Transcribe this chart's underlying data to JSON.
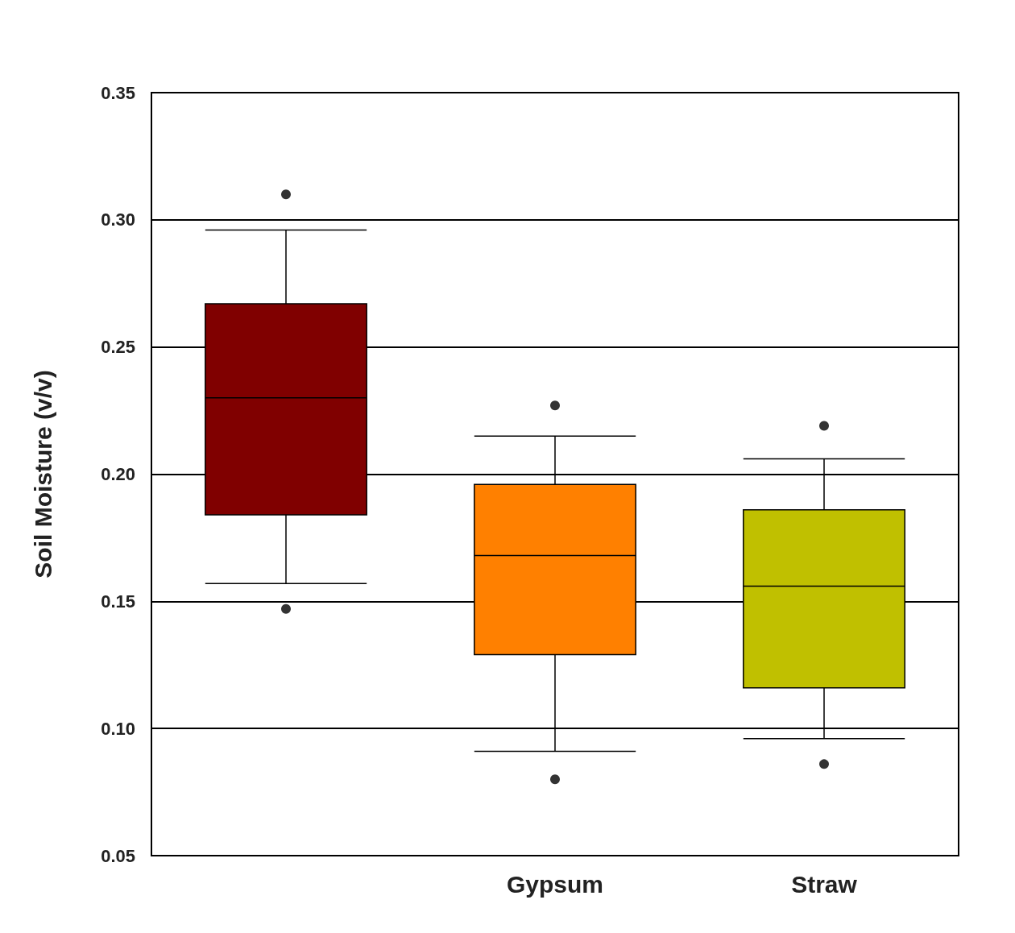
{
  "chart_data": {
    "type": "box",
    "ylabel": "Soil Moisture (v/v)",
    "categories": [
      null,
      "Gypsum",
      "Straw"
    ],
    "colors": [
      "#800000",
      "#ff8000",
      "#c0c000"
    ],
    "boxes": [
      {
        "low": 0.157,
        "q1": 0.184,
        "median": 0.23,
        "q3": 0.267,
        "high": 0.296,
        "outliers": [
          0.31,
          0.147
        ]
      },
      {
        "low": 0.091,
        "q1": 0.129,
        "median": 0.168,
        "q3": 0.196,
        "high": 0.215,
        "outliers": [
          0.227,
          0.08
        ]
      },
      {
        "low": 0.096,
        "q1": 0.116,
        "median": 0.156,
        "q3": 0.186,
        "high": 0.206,
        "outliers": [
          0.219,
          0.086
        ]
      }
    ],
    "ylim": [
      0.05,
      0.35
    ],
    "yticks": [
      0.05,
      {
        "value": 0.1,
        "label": "0.10"
      },
      0.15,
      {
        "value": 0.2,
        "label": "0.20"
      },
      0.25,
      {
        "value": 0.3,
        "label": "0.30"
      },
      0.35
    ],
    "grid": "y"
  }
}
